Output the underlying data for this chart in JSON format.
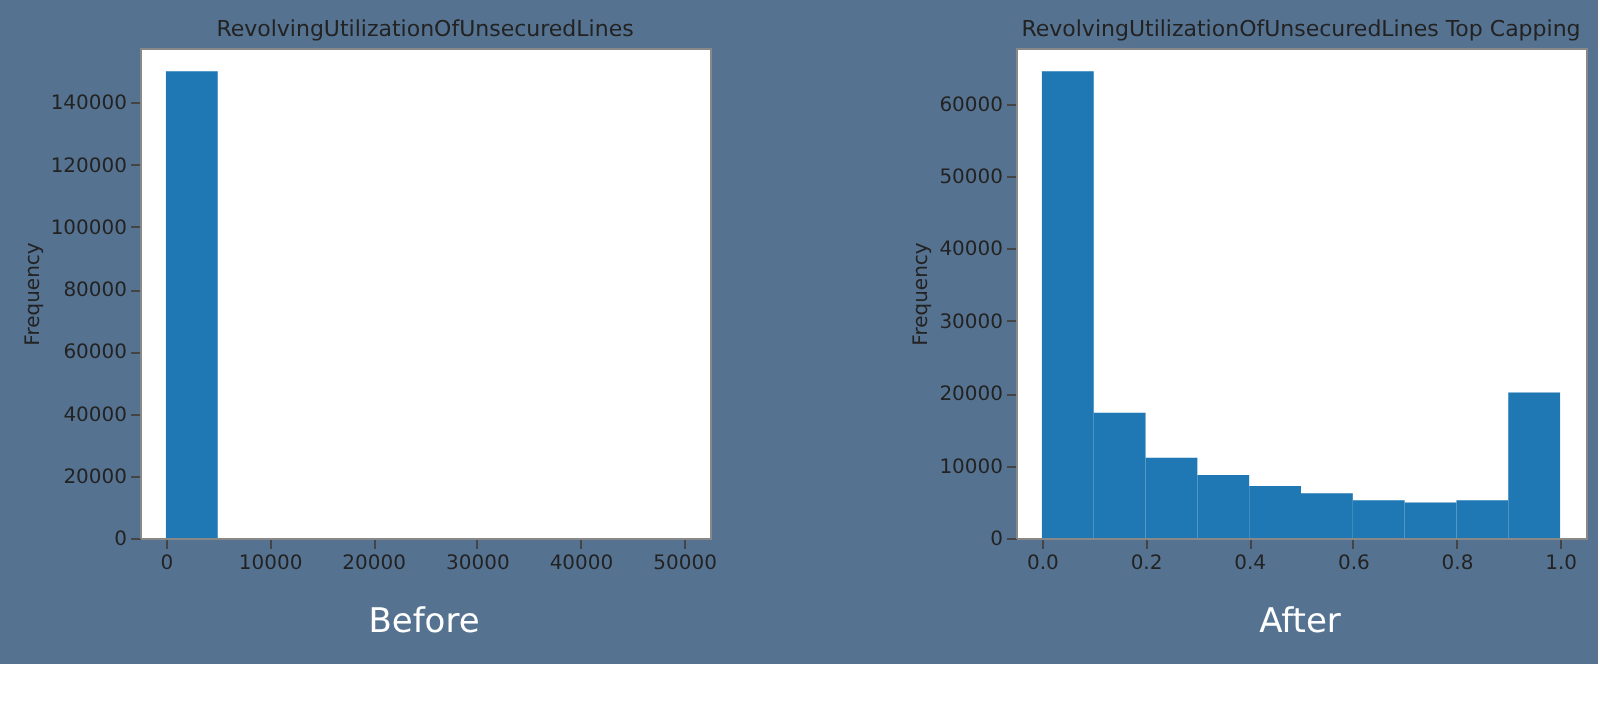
{
  "chart_data": [
    {
      "type": "histogram",
      "title": "RevolvingUtilizationOfUnsecuredLines",
      "ylabel": "Frequency",
      "color": "#1f77b4",
      "bins": [
        0,
        5000,
        10000,
        15000,
        20000,
        25000,
        30000,
        35000,
        40000,
        45000,
        50000
      ],
      "values": [
        150000,
        0,
        0,
        0,
        0,
        0,
        0,
        0,
        0,
        0
      ],
      "xlim": [
        -2500,
        52500
      ],
      "xticks": [
        0,
        10000,
        20000,
        30000,
        40000,
        50000
      ],
      "ylim": [
        0,
        157500
      ],
      "yticks": [
        0,
        20000,
        40000,
        60000,
        80000,
        100000,
        120000,
        140000
      ],
      "grid": false,
      "annotations": [
        "Before"
      ]
    },
    {
      "type": "histogram",
      "title": "RevolvingUtilizationOfUnsecuredLines Top Capping",
      "ylabel": "Frequency",
      "color": "#1f77b4",
      "bins": [
        0,
        0.1,
        0.2,
        0.3,
        0.4,
        0.5,
        0.6,
        0.7,
        0.8,
        0.9,
        1.0
      ],
      "values": [
        64500,
        17300,
        11100,
        8700,
        7200,
        6200,
        5200,
        4900,
        5200,
        20100
      ],
      "xlim": [
        -0.05,
        1.05
      ],
      "xticks": [
        {
          "value": 0,
          "label": "0.0"
        },
        0.2,
        0.4,
        0.6,
        0.8,
        {
          "value": 1,
          "label": "1.0"
        }
      ],
      "ylim": [
        0,
        67700
      ],
      "yticks": [
        0,
        10000,
        20000,
        30000,
        40000,
        50000,
        60000
      ],
      "grid": false,
      "annotations": [
        "After"
      ]
    }
  ]
}
